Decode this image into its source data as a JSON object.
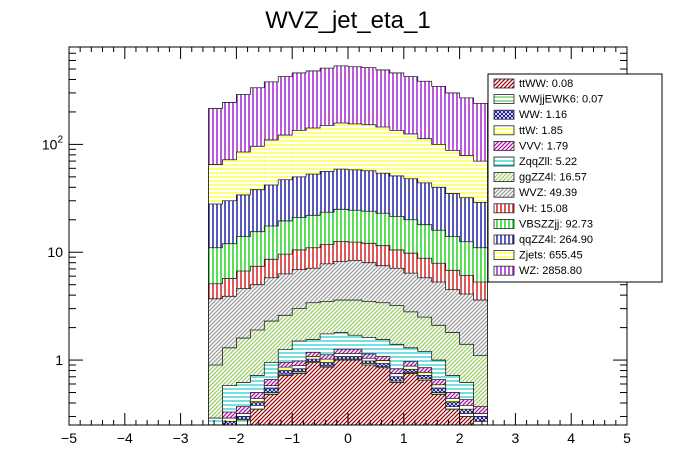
{
  "chart_data": {
    "type": "bar",
    "title": "WVZ_jet_eta_1",
    "xlabel": "",
    "ylabel": "",
    "stacked": true,
    "log_y": true,
    "xlim": [
      -5,
      5
    ],
    "ylim": [
      0.25,
      800
    ],
    "grid": false,
    "legend_position": "top-right",
    "x_ticks": [
      "−5",
      "−4",
      "−3",
      "−2",
      "−1",
      "0",
      "1",
      "2",
      "3",
      "4",
      "5"
    ],
    "y_ticks": [
      {
        "value": 1,
        "label": "1"
      },
      {
        "value": 10,
        "label": "10"
      },
      {
        "value": 100,
        "label": "10^2"
      }
    ],
    "bin_edges": [
      -2.5,
      -2.25,
      -2.0,
      -1.75,
      -1.5,
      -1.25,
      -1.0,
      -0.75,
      -0.5,
      -0.25,
      0.0,
      0.25,
      0.5,
      0.75,
      1.0,
      1.25,
      1.5,
      1.75,
      2.0,
      2.25,
      2.5
    ],
    "stack_totals": [
      {
        "name": "ttWW",
        "values": [
          0.05,
          0.2,
          0.25,
          0.35,
          0.48,
          0.72,
          0.75,
          0.95,
          0.86,
          1.0,
          1.0,
          0.9,
          0.85,
          0.62,
          0.75,
          0.65,
          0.48,
          0.35,
          0.3,
          0.25
        ]
      },
      {
        "name": "WWjjEWK6",
        "values": [
          0.05,
          0.25,
          0.28,
          0.38,
          0.5,
          0.74,
          0.78,
          0.97,
          0.88,
          1.02,
          1.02,
          0.93,
          0.87,
          0.64,
          0.77,
          0.67,
          0.5,
          0.37,
          0.32,
          0.27
        ]
      },
      {
        "name": "WW",
        "values": [
          0.06,
          0.27,
          0.3,
          0.41,
          0.55,
          0.8,
          0.83,
          1.02,
          0.95,
          1.08,
          1.08,
          0.98,
          0.93,
          0.7,
          0.82,
          0.72,
          0.55,
          0.41,
          0.35,
          0.3
        ]
      },
      {
        "name": "ttW",
        "values": [
          0.07,
          0.29,
          0.32,
          0.44,
          0.58,
          0.86,
          0.89,
          1.08,
          1.02,
          1.15,
          1.15,
          1.04,
          0.99,
          0.75,
          0.88,
          0.77,
          0.59,
          0.44,
          0.38,
          0.32
        ]
      },
      {
        "name": "VVV",
        "values": [
          0.09,
          0.33,
          0.37,
          0.5,
          0.66,
          0.95,
          0.98,
          1.18,
          1.12,
          1.26,
          1.26,
          1.14,
          1.08,
          0.83,
          0.97,
          0.85,
          0.66,
          0.5,
          0.43,
          0.37
        ]
      },
      {
        "name": "ZqqZll",
        "values": [
          0.29,
          0.58,
          0.62,
          0.72,
          0.95,
          1.25,
          1.5,
          1.55,
          1.75,
          1.8,
          1.7,
          1.62,
          1.55,
          1.4,
          1.3,
          1.2,
          1.0,
          0.72,
          0.62,
          0.29
        ]
      },
      {
        "name": "ggZZ4l",
        "values": [
          0.9,
          1.3,
          1.6,
          1.9,
          2.3,
          2.6,
          3.0,
          3.4,
          3.5,
          3.6,
          3.6,
          3.5,
          3.4,
          3.2,
          2.8,
          2.5,
          2.1,
          1.8,
          1.4,
          1.1
        ]
      },
      {
        "name": "WVZ",
        "values": [
          3.7,
          3.9,
          4.6,
          5.0,
          5.8,
          6.3,
          6.9,
          7.1,
          7.8,
          8.2,
          8.4,
          8.0,
          7.5,
          7.1,
          6.4,
          5.8,
          5.3,
          4.5,
          4.1,
          3.6
        ]
      },
      {
        "name": "VH",
        "values": [
          5.1,
          5.7,
          6.7,
          7.4,
          8.6,
          9.6,
          10.5,
          11.0,
          11.8,
          12.6,
          12.4,
          12.1,
          11.5,
          10.5,
          9.8,
          8.8,
          7.9,
          6.8,
          6.1,
          5.3
        ]
      },
      {
        "name": "VBSZZjj",
        "values": [
          11.0,
          12.0,
          14.0,
          15.5,
          17.5,
          19.5,
          21.0,
          22.0,
          23.5,
          25.0,
          24.5,
          24.0,
          23.0,
          21.5,
          20.0,
          18.0,
          16.0,
          14.0,
          12.5,
          11.0
        ]
      },
      {
        "name": "qqZZ4l",
        "values": [
          28,
          30,
          34,
          38,
          42,
          47,
          50,
          53,
          56,
          59,
          58,
          57,
          54,
          51,
          48,
          44,
          40,
          35,
          32,
          29
        ]
      },
      {
        "name": "Zjets",
        "values": [
          65,
          72,
          85,
          96,
          110,
          122,
          135,
          142,
          150,
          158,
          155,
          152,
          145,
          135,
          125,
          113,
          100,
          88,
          79,
          70
        ]
      },
      {
        "name": "WZ",
        "values": [
          215,
          245,
          290,
          335,
          380,
          425,
          460,
          480,
          510,
          535,
          525,
          515,
          490,
          460,
          425,
          385,
          345,
          300,
          270,
          240
        ]
      }
    ],
    "legend": [
      {
        "label": "ttWW: 0.08",
        "color": "#990000"
      },
      {
        "label": "WWjjEWK6: 0.07",
        "color": "#66cc66"
      },
      {
        "label": "WW: 1.16",
        "color": "#000099"
      },
      {
        "label": "ttW: 1.85",
        "color": "#ffff33"
      },
      {
        "label": "VVV: 1.79",
        "color": "#b300b3"
      },
      {
        "label": "ZqqZll: 5.22",
        "color": "#33cccc"
      },
      {
        "label": "ggZZ4l: 16.57",
        "color": "#99cc66"
      },
      {
        "label": "WVZ: 49.39",
        "color": "#999999"
      },
      {
        "label": "VH: 15.08",
        "color": "#cc0000"
      },
      {
        "label": "VBSZZjj: 92.73",
        "color": "#00cc00"
      },
      {
        "label": "qqZZ4l: 264.90",
        "color": "#000099"
      },
      {
        "label": "Zjets: 655.45",
        "color": "#ffff33"
      },
      {
        "label": "WZ: 2858.80",
        "color": "#9900cc"
      }
    ],
    "series_colors": {
      "ttWW": "#990000",
      "WWjjEWK6": "#66cc66",
      "WW": "#000099",
      "ttW": "#ffff33",
      "VVV": "#b300b3",
      "ZqqZll": "#33cccc",
      "ggZZ4l": "#99cc66",
      "WVZ": "#999999",
      "VH": "#cc0000",
      "VBSZZjj": "#00cc00",
      "qqZZ4l": "#000099",
      "Zjets": "#ffff33",
      "WZ": "#9900cc"
    }
  }
}
